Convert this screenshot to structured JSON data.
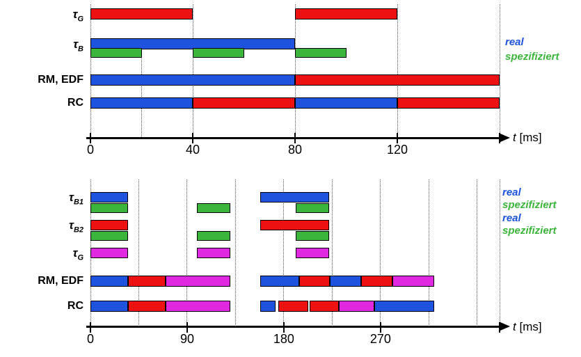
{
  "colors": {
    "blue": "#1e53e0",
    "red": "#ee1111",
    "green": "#3cb53c",
    "magenta": "#e028e0"
  },
  "top_chart": {
    "rows": [
      {
        "label_main": "τ",
        "label_sub": "G"
      },
      {
        "label_main": "τ",
        "label_sub": "B"
      },
      {
        "label_main": "RM, EDF",
        "label_sub": ""
      },
      {
        "label_main": "RC",
        "label_sub": ""
      }
    ],
    "legend": [
      {
        "text": "real",
        "color": "blue"
      },
      {
        "text": "spezifiziert",
        "color": "green"
      }
    ],
    "axis": {
      "ticks": [
        0,
        40,
        80,
        120
      ],
      "end_tick": 160,
      "label_var": "t",
      "label_unit": "[ms]"
    },
    "gridlines_ms": [
      0,
      40,
      80,
      120,
      160
    ],
    "partial_gridlines_ms": [
      20
    ],
    "lanes": {
      "tauG": [
        {
          "start": 0,
          "end": 40,
          "color": "red"
        },
        {
          "start": 80,
          "end": 120,
          "color": "red"
        }
      ],
      "tauB_real": [
        {
          "start": 0,
          "end": 80,
          "color": "blue"
        }
      ],
      "tauB_spez": [
        {
          "start": 0,
          "end": 20,
          "color": "green"
        },
        {
          "start": 40,
          "end": 60,
          "color": "green"
        },
        {
          "start": 80,
          "end": 100,
          "color": "green"
        }
      ],
      "rmedf": [
        {
          "start": 0,
          "end": 80,
          "color": "blue"
        },
        {
          "start": 80,
          "end": 160,
          "color": "red"
        }
      ],
      "rc": [
        {
          "start": 0,
          "end": 40,
          "color": "blue"
        },
        {
          "start": 40,
          "end": 80,
          "color": "red"
        },
        {
          "start": 80,
          "end": 120,
          "color": "blue"
        },
        {
          "start": 120,
          "end": 160,
          "color": "red"
        }
      ]
    }
  },
  "bottom_chart": {
    "rows": [
      {
        "label_main": "τ",
        "label_sub": "B1"
      },
      {
        "label_main": "τ",
        "label_sub": "B2"
      },
      {
        "label_main": "τ",
        "label_sub": "G"
      },
      {
        "label_main": "RM, EDF",
        "label_sub": ""
      },
      {
        "label_main": "RC",
        "label_sub": ""
      }
    ],
    "legend": [
      {
        "text": "real",
        "color": "blue"
      },
      {
        "text": "spezifiziert",
        "color": "green"
      },
      {
        "text": "real",
        "color": "blue"
      },
      {
        "text": "spezifiziert",
        "color": "green"
      }
    ],
    "axis": {
      "ticks": [
        0,
        90,
        180,
        270
      ],
      "end_tick": 381,
      "label_var": "t",
      "label_unit": "[ms]"
    },
    "gridlines_ms": [
      0,
      45,
      90,
      135,
      180,
      225,
      270,
      315,
      360,
      381
    ],
    "partial_gridlines_ms": [],
    "lanes": {
      "tauB1_real": [
        {
          "start": 0,
          "end": 35,
          "color": "blue"
        },
        {
          "start": 158,
          "end": 222,
          "color": "blue"
        }
      ],
      "tauB1_spez": [
        {
          "start": 0,
          "end": 35,
          "color": "green"
        },
        {
          "start": 99,
          "end": 130,
          "color": "green"
        },
        {
          "start": 191,
          "end": 222,
          "color": "green"
        }
      ],
      "tauB2_real": [
        {
          "start": 0,
          "end": 35,
          "color": "red"
        },
        {
          "start": 158,
          "end": 222,
          "color": "red"
        }
      ],
      "tauB2_spez": [
        {
          "start": 0,
          "end": 35,
          "color": "green"
        },
        {
          "start": 99,
          "end": 130,
          "color": "green"
        },
        {
          "start": 191,
          "end": 222,
          "color": "green"
        }
      ],
      "tauG": [
        {
          "start": 0,
          "end": 35,
          "color": "magenta"
        },
        {
          "start": 99,
          "end": 130,
          "color": "magenta"
        },
        {
          "start": 191,
          "end": 222,
          "color": "magenta"
        }
      ],
      "rmedf": [
        {
          "start": 0,
          "end": 35,
          "color": "blue"
        },
        {
          "start": 35,
          "end": 70,
          "color": "red"
        },
        {
          "start": 70,
          "end": 130,
          "color": "magenta"
        },
        {
          "start": 158,
          "end": 194,
          "color": "blue"
        },
        {
          "start": 194,
          "end": 223,
          "color": "red"
        },
        {
          "start": 223,
          "end": 252,
          "color": "blue"
        },
        {
          "start": 252,
          "end": 281,
          "color": "red"
        },
        {
          "start": 281,
          "end": 320,
          "color": "magenta"
        }
      ],
      "rc": [
        {
          "start": 0,
          "end": 35,
          "color": "blue"
        },
        {
          "start": 35,
          "end": 70,
          "color": "red"
        },
        {
          "start": 70,
          "end": 130,
          "color": "magenta"
        },
        {
          "start": 158,
          "end": 172,
          "color": "blue"
        },
        {
          "start": 175,
          "end": 203,
          "color": "red"
        },
        {
          "start": 204,
          "end": 231,
          "color": "red"
        },
        {
          "start": 231,
          "end": 264,
          "color": "magenta"
        },
        {
          "start": 264,
          "end": 320,
          "color": "blue"
        }
      ]
    }
  }
}
